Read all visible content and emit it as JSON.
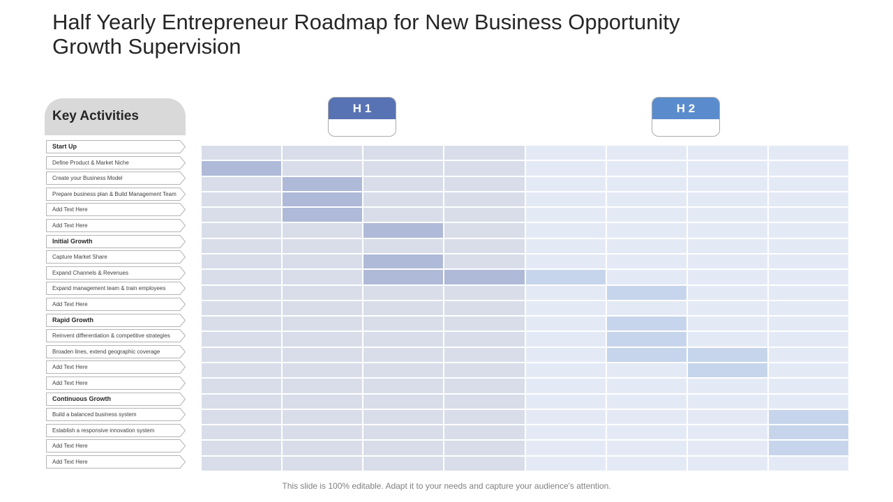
{
  "title": "Half Yearly Entrepreneur Roadmap for New Business Opportunity Growth Supervision",
  "key_activities_title": "Key Activities",
  "halves": [
    {
      "label": "H 1",
      "color": "#5873b3"
    },
    {
      "label": "H 2",
      "color": "#5a8ccd"
    }
  ],
  "activities": [
    {
      "label": "Start Up",
      "section": true
    },
    {
      "label": "Define Product  & Market Niche",
      "section": false
    },
    {
      "label": "Create your Business  Model",
      "section": false
    },
    {
      "label": "Prepare  business plan & Build Management  Team",
      "section": false
    },
    {
      "label": "Add Text Here",
      "section": false
    },
    {
      "label": "Add Text Here",
      "section": false
    },
    {
      "label": "Initial Growth",
      "section": true
    },
    {
      "label": "Capture  Market Share",
      "section": false
    },
    {
      "label": "Expand  Channels  & Revenues",
      "section": false
    },
    {
      "label": "Expand  management  team  & train employees",
      "section": false
    },
    {
      "label": "Add Text Here",
      "section": false
    },
    {
      "label": "Rapid Growth",
      "section": true
    },
    {
      "label": "Reinvent  differentiation  & competitive  strategies",
      "section": false
    },
    {
      "label": "Broaden  lines,  extend  geographic  coverage",
      "section": false
    },
    {
      "label": "Add Text Here",
      "section": false
    },
    {
      "label": "Add Text Here",
      "section": false
    },
    {
      "label": "Continuous Growth",
      "section": true
    },
    {
      "label": "Build  a balanced  business  system",
      "section": false
    },
    {
      "label": "Establish  a responsive  innovation  system",
      "section": false
    },
    {
      "label": "Add Text Here",
      "section": false
    },
    {
      "label": "Add Text Here",
      "section": false
    }
  ],
  "grid": {
    "rows": 21,
    "columns": 8,
    "h1_columns": 4,
    "colors": {
      "h1_base": "#d8dde9",
      "h2_base": "#e4eaf5",
      "h1_bar": "#afb9d8",
      "h2_bar": "#c6d5eb"
    },
    "filled": [
      [
        1,
        0
      ],
      [
        2,
        1
      ],
      [
        3,
        1
      ],
      [
        4,
        1
      ],
      [
        5,
        2
      ],
      [
        7,
        2
      ],
      [
        8,
        2
      ],
      [
        8,
        3
      ],
      [
        8,
        4
      ],
      [
        9,
        5
      ],
      [
        11,
        5
      ],
      [
        12,
        5
      ],
      [
        13,
        5
      ],
      [
        13,
        6
      ],
      [
        14,
        6
      ],
      [
        17,
        7
      ],
      [
        18,
        7
      ],
      [
        19,
        7
      ]
    ]
  },
  "footer": "This slide is 100% editable. Adapt it to your needs and capture your audience's attention."
}
